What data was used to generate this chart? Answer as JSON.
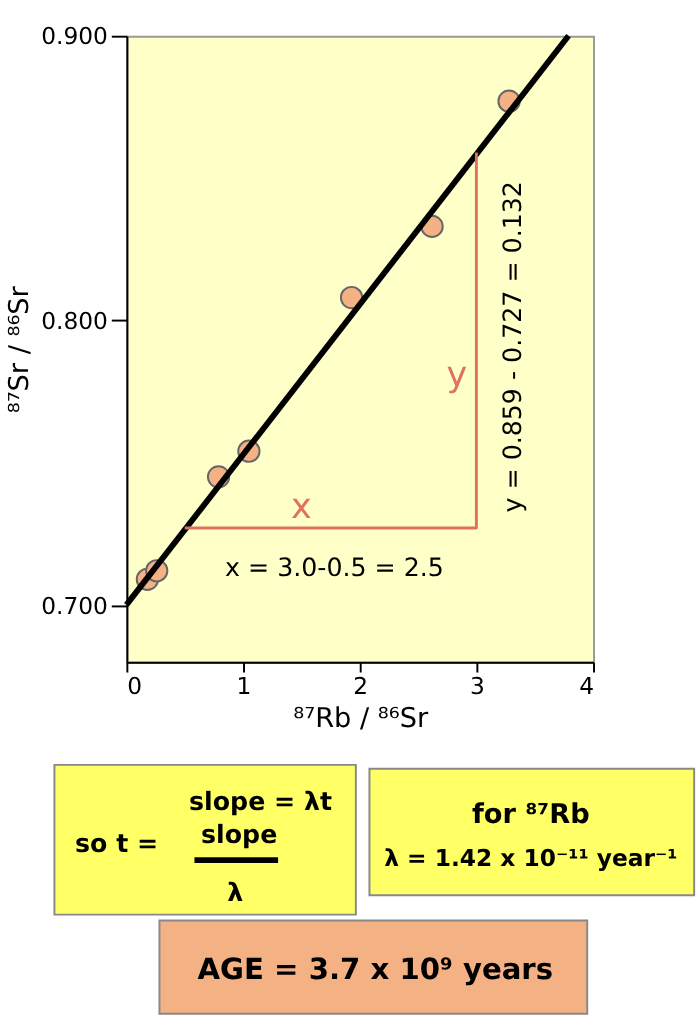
{
  "chart_data": {
    "type": "scatter",
    "xlabel": "⁸⁷Rb / ⁸⁶Sr",
    "ylabel": "⁸⁷Sr / ⁸⁶Sr",
    "xlim": [
      0,
      4
    ],
    "xticks": [
      0,
      1,
      2,
      3,
      4
    ],
    "ylim": [
      0.68,
      0.9
    ],
    "yticks": [
      {
        "value": 0.7,
        "label": "0.700"
      },
      {
        "value": 0.8,
        "label": "0.800"
      },
      {
        "value": 0.9,
        "label": "0.900"
      }
    ],
    "grid": false,
    "series": [
      {
        "color": "#f4b183",
        "marker": "circle",
        "x": [
          0.18,
          0.26,
          0.79,
          1.05,
          1.93,
          2.62,
          3.28
        ],
        "values": [
          0.709,
          0.712,
          0.745,
          0.754,
          0.808,
          0.833,
          0.877
        ]
      },
      {
        "type": "line",
        "color": "#000000",
        "marker": "none",
        "line_style": "solid",
        "x": [
          0,
          3.79
        ],
        "values": [
          0.7,
          0.9
        ]
      },
      {
        "type": "line",
        "color": "#e07060",
        "marker": "none",
        "line_style": "solid",
        "x": [
          0.5,
          3.0,
          3.0
        ],
        "values": [
          0.727,
          0.727,
          0.859
        ]
      }
    ],
    "annotations": [
      "x",
      "y",
      "x = 3.0-0.5 = 2.5",
      "y = 0.859 - 0.727 = 0.132",
      "slope = λt",
      "so t =",
      "slope",
      "λ",
      "for ⁸⁷Rb",
      "λ = 1.42 x 10⁻¹¹ year⁻¹",
      "AGE = 3.7 x 10⁹ years"
    ]
  }
}
